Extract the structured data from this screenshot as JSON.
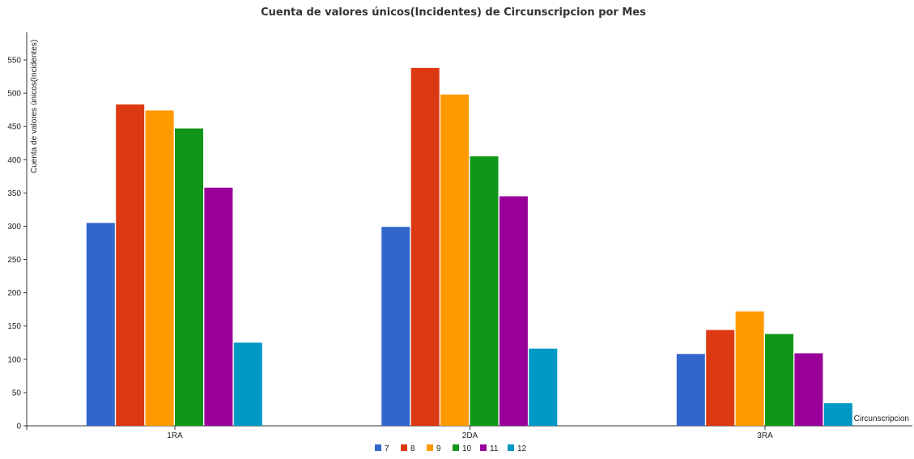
{
  "chart_data": {
    "type": "bar",
    "title": "Cuenta de valores únicos(Incidentes) de Circunscripcion por Mes",
    "xlabel": "Circunscripcion",
    "ylabel": "Cuenta de valores únicos(Incidentes)",
    "ylim": [
      0,
      550
    ],
    "yticks": [
      0,
      50,
      100,
      150,
      200,
      250,
      300,
      350,
      400,
      450,
      500,
      550
    ],
    "grid": false,
    "legend_position": "bottom",
    "categories": [
      "1RA",
      "2DA",
      "3RA"
    ],
    "series": [
      {
        "name": "7",
        "color": "#3366cc",
        "values": [
          305,
          299,
          108
        ]
      },
      {
        "name": "8",
        "color": "#dc3912",
        "values": [
          483,
          538,
          144
        ]
      },
      {
        "name": "9",
        "color": "#ff9900",
        "values": [
          474,
          498,
          172
        ]
      },
      {
        "name": "10",
        "color": "#109618",
        "values": [
          447,
          405,
          138
        ]
      },
      {
        "name": "11",
        "color": "#990099",
        "values": [
          358,
          345,
          109
        ]
      },
      {
        "name": "12",
        "color": "#0099c6",
        "values": [
          125,
          116,
          34
        ]
      }
    ]
  }
}
